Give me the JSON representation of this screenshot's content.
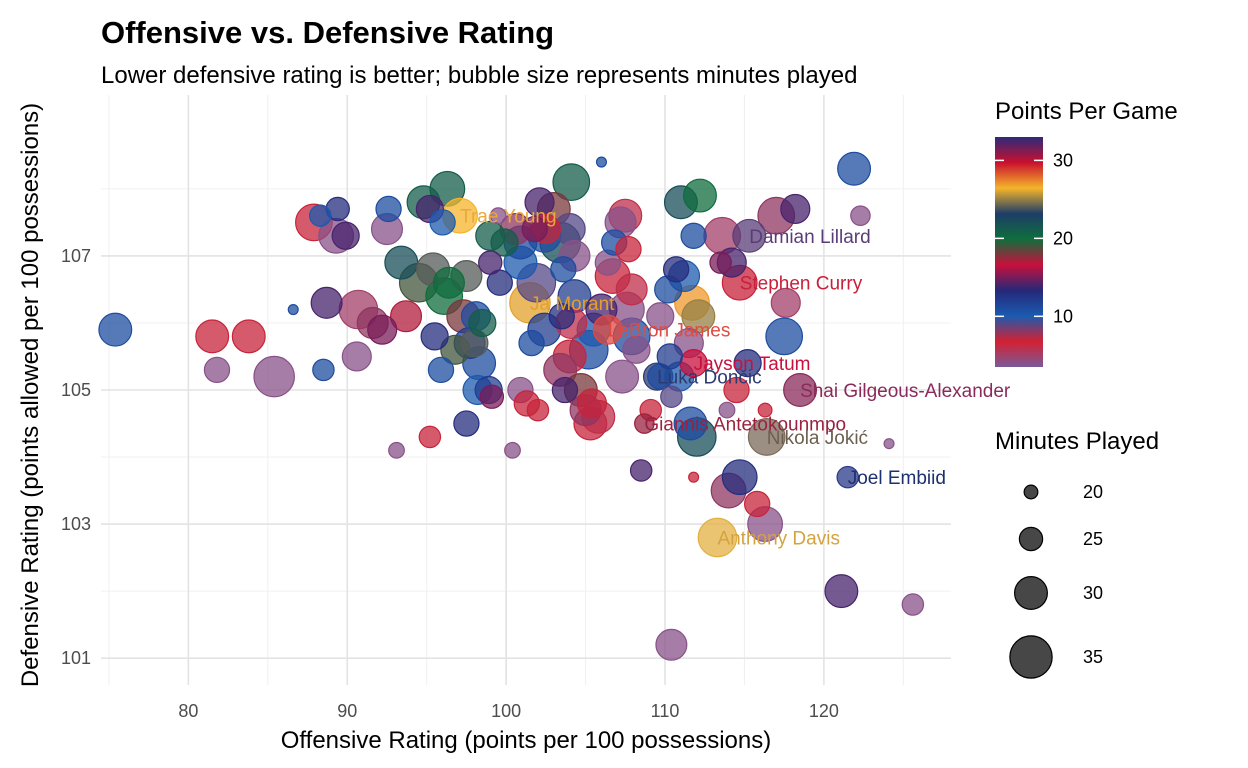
{
  "chart_data": {
    "type": "scatter",
    "title": "Offensive vs. Defensive Rating",
    "subtitle": "Lower defensive rating is better; bubble size represents minutes played",
    "xlabel": "Offensive Rating (points per 100 possessions)",
    "ylabel": "Defensive Rating (points allowed per 100 possessions)",
    "xlim": [
      74.5,
      128
    ],
    "ylim": [
      100.6,
      109.4
    ],
    "x_ticks": [
      80,
      90,
      100,
      110,
      120
    ],
    "y_ticks": [
      101,
      103,
      105,
      107
    ],
    "grid": true,
    "color_legend": {
      "title": "Points Per Game",
      "position": "right",
      "range": [
        3.5,
        33
      ],
      "ticks": [
        10,
        20,
        30
      ],
      "colors": [
        "#7a5a98",
        "#d42032",
        "#1a5bb0",
        "#262878",
        "#c8103c",
        "#0f6e3c",
        "#1d3d68",
        "#f5b42a",
        "#c8102e",
        "#2d2a7a"
      ]
    },
    "size_legend": {
      "title": "Minutes Played",
      "position": "right",
      "range": [
        17,
        38
      ],
      "values": [
        20,
        25,
        30,
        35
      ]
    },
    "points": [
      {
        "name": "Trae Young",
        "off": 97.1,
        "def": 107.6,
        "min": 31,
        "ppg": 28,
        "color": "#f5b42a",
        "label_color": "#e8a93a"
      },
      {
        "name": "Damian Lillard",
        "off": 115.3,
        "def": 107.3,
        "min": 30,
        "ppg": 14,
        "color": "#5a3d78",
        "label_color": "#5a3d78"
      },
      {
        "name": "Stephen Curry",
        "off": 114.7,
        "def": 106.6,
        "min": 31,
        "ppg": 7,
        "color": "#c8203a",
        "label_color": "#c8203a"
      },
      {
        "name": "Ja Morant",
        "off": 101.5,
        "def": 106.3,
        "min": 34,
        "ppg": 27,
        "color": "#e3a02a",
        "label_color": "#e3a02a"
      },
      {
        "name": "LeBron James",
        "off": 106.4,
        "def": 105.9,
        "min": 28,
        "ppg": 9,
        "color": "#e04a40",
        "label_color": "#e04a40"
      },
      {
        "name": "Jayson Tatum",
        "off": 111.8,
        "def": 105.4,
        "min": 27,
        "ppg": 12,
        "color": "#c8103c",
        "label_color": "#c8103c"
      },
      {
        "name": "Luka Dončić",
        "off": 109.5,
        "def": 105.2,
        "min": 27,
        "ppg": 24,
        "color": "#2d3a70",
        "label_color": "#2d3a70"
      },
      {
        "name": "Shai Gilgeous-Alexander",
        "off": 118.5,
        "def": 105.0,
        "min": 30,
        "ppg": 13,
        "color": "#8a2a5a",
        "label_color": "#8a2a5a"
      },
      {
        "name": "Giannis Antetokounmpo",
        "off": 108.7,
        "def": 104.5,
        "min": 23,
        "ppg": 12,
        "color": "#9a2240",
        "label_color": "#9a2240"
      },
      {
        "name": "Nikola Jokić",
        "off": 116.4,
        "def": 104.3,
        "min": 32,
        "ppg": 4,
        "color": "#7a6a5a",
        "label_color": "#6d5f50"
      },
      {
        "name": "Joel Embiid",
        "off": 121.5,
        "def": 103.7,
        "min": 24,
        "ppg": 11,
        "color": "#2a3a8a",
        "label_color": "#1d3070"
      },
      {
        "name": "Anthony Davis",
        "off": 113.3,
        "def": 102.8,
        "min": 33,
        "ppg": 29,
        "color": "#e3b040",
        "label_color": "#d4a340"
      }
    ],
    "bubbles": [
      [
        75.4,
        105.9,
        30,
        11
      ],
      [
        81.5,
        105.8,
        30,
        7
      ],
      [
        83.8,
        105.8,
        30,
        7
      ],
      [
        81.8,
        105.3,
        26,
        4
      ],
      [
        85.4,
        105.2,
        34,
        4
      ],
      [
        87.9,
        107.5,
        32,
        7
      ],
      [
        88.3,
        107.6,
        24,
        10
      ],
      [
        89.4,
        107.7,
        25,
        13
      ],
      [
        89.3,
        107.3,
        31,
        4
      ],
      [
        89.9,
        107.3,
        27,
        14
      ],
      [
        88.7,
        106.3,
        29,
        14
      ],
      [
        88.5,
        105.3,
        24,
        11
      ],
      [
        90.6,
        105.5,
        28,
        4
      ],
      [
        86.6,
        106.2,
        18,
        11
      ],
      [
        90.7,
        106.2,
        33,
        5
      ],
      [
        91.6,
        106.0,
        29,
        8
      ],
      [
        92.2,
        105.9,
        28,
        15
      ],
      [
        92.5,
        107.4,
        29,
        4
      ],
      [
        92.6,
        107.7,
        26,
        11
      ],
      [
        93.4,
        106.9,
        30,
        22
      ],
      [
        94.5,
        106.6,
        33,
        19
      ],
      [
        94.8,
        107.8,
        30,
        21
      ],
      [
        96.3,
        108.0,
        31,
        21
      ],
      [
        95.2,
        107.7,
        27,
        14
      ],
      [
        96.0,
        107.5,
        26,
        10
      ],
      [
        95.4,
        106.8,
        30,
        24
      ],
      [
        96.1,
        106.4,
        32,
        20
      ],
      [
        97.3,
        106.1,
        30,
        18
      ],
      [
        96.8,
        105.6,
        28,
        19
      ],
      [
        95.5,
        105.8,
        27,
        13
      ],
      [
        95.9,
        105.3,
        26,
        11
      ],
      [
        95.2,
        104.3,
        24,
        7
      ],
      [
        93.1,
        104.1,
        21,
        4
      ],
      [
        97.5,
        104.5,
        26,
        13
      ],
      [
        97.7,
        105.7,
        29,
        12
      ],
      [
        98.3,
        105.4,
        30,
        11
      ],
      [
        98.2,
        105.0,
        28,
        10
      ],
      [
        98.9,
        105.0,
        27,
        12
      ],
      [
        99.1,
        104.9,
        25,
        15
      ],
      [
        98.0,
        105.7,
        27,
        24
      ],
      [
        98.1,
        106.1,
        28,
        11
      ],
      [
        99.0,
        106.9,
        25,
        14
      ],
      [
        99.0,
        107.3,
        28,
        21
      ],
      [
        99.9,
        107.2,
        27,
        21
      ],
      [
        100.6,
        107.4,
        29,
        8
      ],
      [
        100.9,
        106.9,
        30,
        10
      ],
      [
        99.5,
        107.6,
        21,
        4
      ],
      [
        100.4,
        104.1,
        21,
        4
      ],
      [
        100.9,
        105.0,
        26,
        4
      ],
      [
        101.3,
        104.8,
        26,
        7
      ],
      [
        102.0,
        104.7,
        24,
        7
      ],
      [
        101.6,
        105.7,
        26,
        11
      ],
      [
        102.4,
        105.9,
        30,
        12
      ],
      [
        101.8,
        107.4,
        26,
        15
      ],
      [
        102.1,
        107.8,
        28,
        14
      ],
      [
        102.4,
        107.3,
        30,
        11
      ],
      [
        102.5,
        107.4,
        28,
        7
      ],
      [
        103.0,
        107.7,
        30,
        18
      ],
      [
        103.4,
        107.2,
        34,
        22
      ],
      [
        104.1,
        108.1,
        32,
        21
      ],
      [
        104.0,
        107.4,
        29,
        9
      ],
      [
        104.3,
        107.0,
        29,
        4
      ],
      [
        103.6,
        106.8,
        26,
        11
      ],
      [
        104.3,
        106.4,
        30,
        12
      ],
      [
        103.5,
        106.1,
        26,
        13
      ],
      [
        104.1,
        106.0,
        29,
        6
      ],
      [
        104.0,
        105.5,
        30,
        7
      ],
      [
        103.4,
        105.3,
        30,
        8
      ],
      [
        103.7,
        105.0,
        26,
        14
      ],
      [
        104.7,
        105.0,
        30,
        18
      ],
      [
        105.0,
        104.7,
        29,
        8
      ],
      [
        105.4,
        104.8,
        28,
        7
      ],
      [
        105.3,
        104.5,
        30,
        7
      ],
      [
        105.8,
        104.6,
        30,
        6
      ],
      [
        105.2,
        105.6,
        33,
        11
      ],
      [
        105.5,
        105.9,
        30,
        10
      ],
      [
        106.0,
        106.2,
        29,
        14
      ],
      [
        106.7,
        106.7,
        31,
        7
      ],
      [
        106.4,
        106.9,
        26,
        4
      ],
      [
        106.8,
        107.2,
        26,
        11
      ],
      [
        107.2,
        107.5,
        29,
        4
      ],
      [
        107.5,
        107.6,
        30,
        6
      ],
      [
        107.7,
        107.1,
        26,
        7
      ],
      [
        107.9,
        106.5,
        29,
        6
      ],
      [
        107.6,
        106.2,
        31,
        4
      ],
      [
        107.9,
        105.8,
        32,
        11
      ],
      [
        107.3,
        105.2,
        30,
        4
      ],
      [
        108.2,
        105.6,
        27,
        4
      ],
      [
        108.5,
        103.8,
        24,
        14
      ],
      [
        109.1,
        104.7,
        24,
        7
      ],
      [
        109.7,
        105.2,
        26,
        11
      ],
      [
        109.7,
        106.1,
        27,
        4
      ],
      [
        110.2,
        106.5,
        27,
        11
      ],
      [
        110.7,
        106.8,
        26,
        13
      ],
      [
        111.2,
        106.7,
        29,
        10
      ],
      [
        111.0,
        107.8,
        30,
        22
      ],
      [
        112.2,
        107.9,
        30,
        20
      ],
      [
        111.8,
        107.3,
        26,
        11
      ],
      [
        111.7,
        106.3,
        31,
        27
      ],
      [
        112.1,
        106.1,
        30,
        25
      ],
      [
        111.5,
        105.7,
        28,
        4
      ],
      [
        110.9,
        105.2,
        28,
        10
      ],
      [
        110.3,
        105.5,
        26,
        12
      ],
      [
        110.4,
        104.9,
        24,
        9
      ],
      [
        111.6,
        104.5,
        30,
        11
      ],
      [
        112.0,
        104.3,
        33,
        22
      ],
      [
        111.8,
        103.7,
        18,
        7
      ],
      [
        114.0,
        103.5,
        31,
        8
      ],
      [
        114.7,
        103.7,
        31,
        13
      ],
      [
        115.8,
        103.3,
        26,
        7
      ],
      [
        116.3,
        103.0,
        31,
        4
      ],
      [
        113.9,
        104.7,
        21,
        4
      ],
      [
        114.5,
        105.0,
        26,
        7
      ],
      [
        115.2,
        105.4,
        27,
        13
      ],
      [
        116.3,
        104.7,
        20,
        7
      ],
      [
        117.5,
        105.8,
        32,
        11
      ],
      [
        117.6,
        106.3,
        28,
        5
      ],
      [
        114.2,
        106.9,
        28,
        14
      ],
      [
        113.6,
        107.3,
        32,
        5
      ],
      [
        117.0,
        107.6,
        32,
        8
      ],
      [
        118.2,
        107.7,
        28,
        14
      ],
      [
        121.9,
        108.3,
        30,
        11
      ],
      [
        122.3,
        107.6,
        23,
        4
      ],
      [
        121.1,
        102.0,
        30,
        14
      ],
      [
        110.4,
        101.2,
        29,
        4
      ],
      [
        125.6,
        101.8,
        24,
        4
      ],
      [
        124.1,
        104.2,
        18,
        4
      ],
      [
        113.5,
        106.9,
        24,
        15
      ],
      [
        106.0,
        108.4,
        18,
        11
      ],
      [
        100.9,
        107.2,
        30,
        11
      ],
      [
        98.5,
        106.0,
        27,
        21
      ],
      [
        97.5,
        106.7,
        29,
        24
      ],
      [
        99.6,
        106.6,
        26,
        13
      ],
      [
        101.9,
        106.6,
        33,
        9
      ],
      [
        96.4,
        106.6,
        29,
        20
      ],
      [
        93.7,
        106.1,
        29,
        17
      ]
    ]
  }
}
